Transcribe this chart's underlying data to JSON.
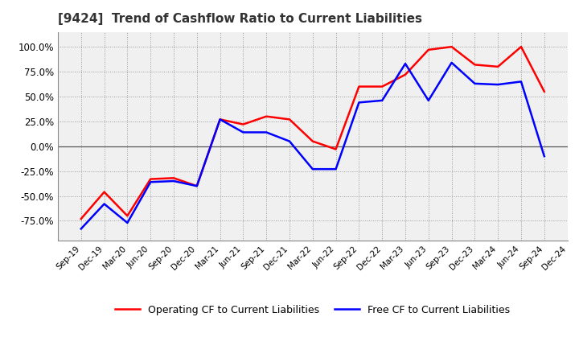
{
  "title": "[9424]  Trend of Cashflow Ratio to Current Liabilities",
  "x_labels": [
    "Sep-19",
    "Dec-19",
    "Mar-20",
    "Jun-20",
    "Sep-20",
    "Dec-20",
    "Mar-21",
    "Jun-21",
    "Sep-21",
    "Dec-21",
    "Mar-22",
    "Jun-22",
    "Sep-22",
    "Dec-22",
    "Mar-23",
    "Jun-23",
    "Sep-23",
    "Dec-23",
    "Mar-24",
    "Jun-24",
    "Sep-24",
    "Dec-24"
  ],
  "operating_cf": [
    -73,
    -46,
    -70,
    -33,
    -32,
    -40,
    27,
    22,
    30,
    27,
    5,
    -3,
    60,
    60,
    72,
    97,
    100,
    82,
    80,
    100,
    55,
    null
  ],
  "free_cf": [
    -83,
    -58,
    -77,
    -36,
    -35,
    -40,
    27,
    14,
    14,
    5,
    -23,
    -23,
    44,
    46,
    83,
    46,
    84,
    63,
    62,
    65,
    -10,
    null
  ],
  "ylim": [
    -95,
    115
  ],
  "yticks": [
    -75,
    -50,
    -25,
    0,
    25,
    50,
    75,
    100
  ],
  "operating_color": "#FF0000",
  "free_color": "#0000FF",
  "background_color": "#FFFFFF",
  "plot_bg_color": "#F0F0F0",
  "grid_color": "#999999",
  "legend_labels": [
    "Operating CF to Current Liabilities",
    "Free CF to Current Liabilities"
  ],
  "title_color": "#333333",
  "title_fontsize": 11,
  "linewidth": 1.8
}
